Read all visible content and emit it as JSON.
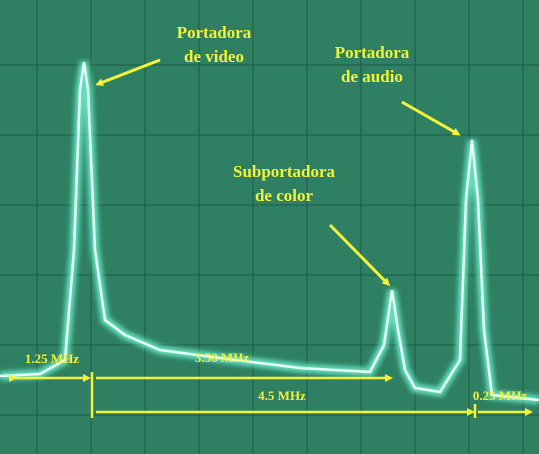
{
  "annotations": [
    {
      "lines": [
        "Portadora",
        "de video"
      ]
    },
    {
      "lines": [
        "Portadora",
        "de audio"
      ]
    },
    {
      "lines": [
        "Subportadora",
        "de color"
      ]
    }
  ],
  "measurements": [
    "1.25 MHz",
    "3.58 MHz",
    "4.5 MHz",
    "0.25 MHz"
  ]
}
